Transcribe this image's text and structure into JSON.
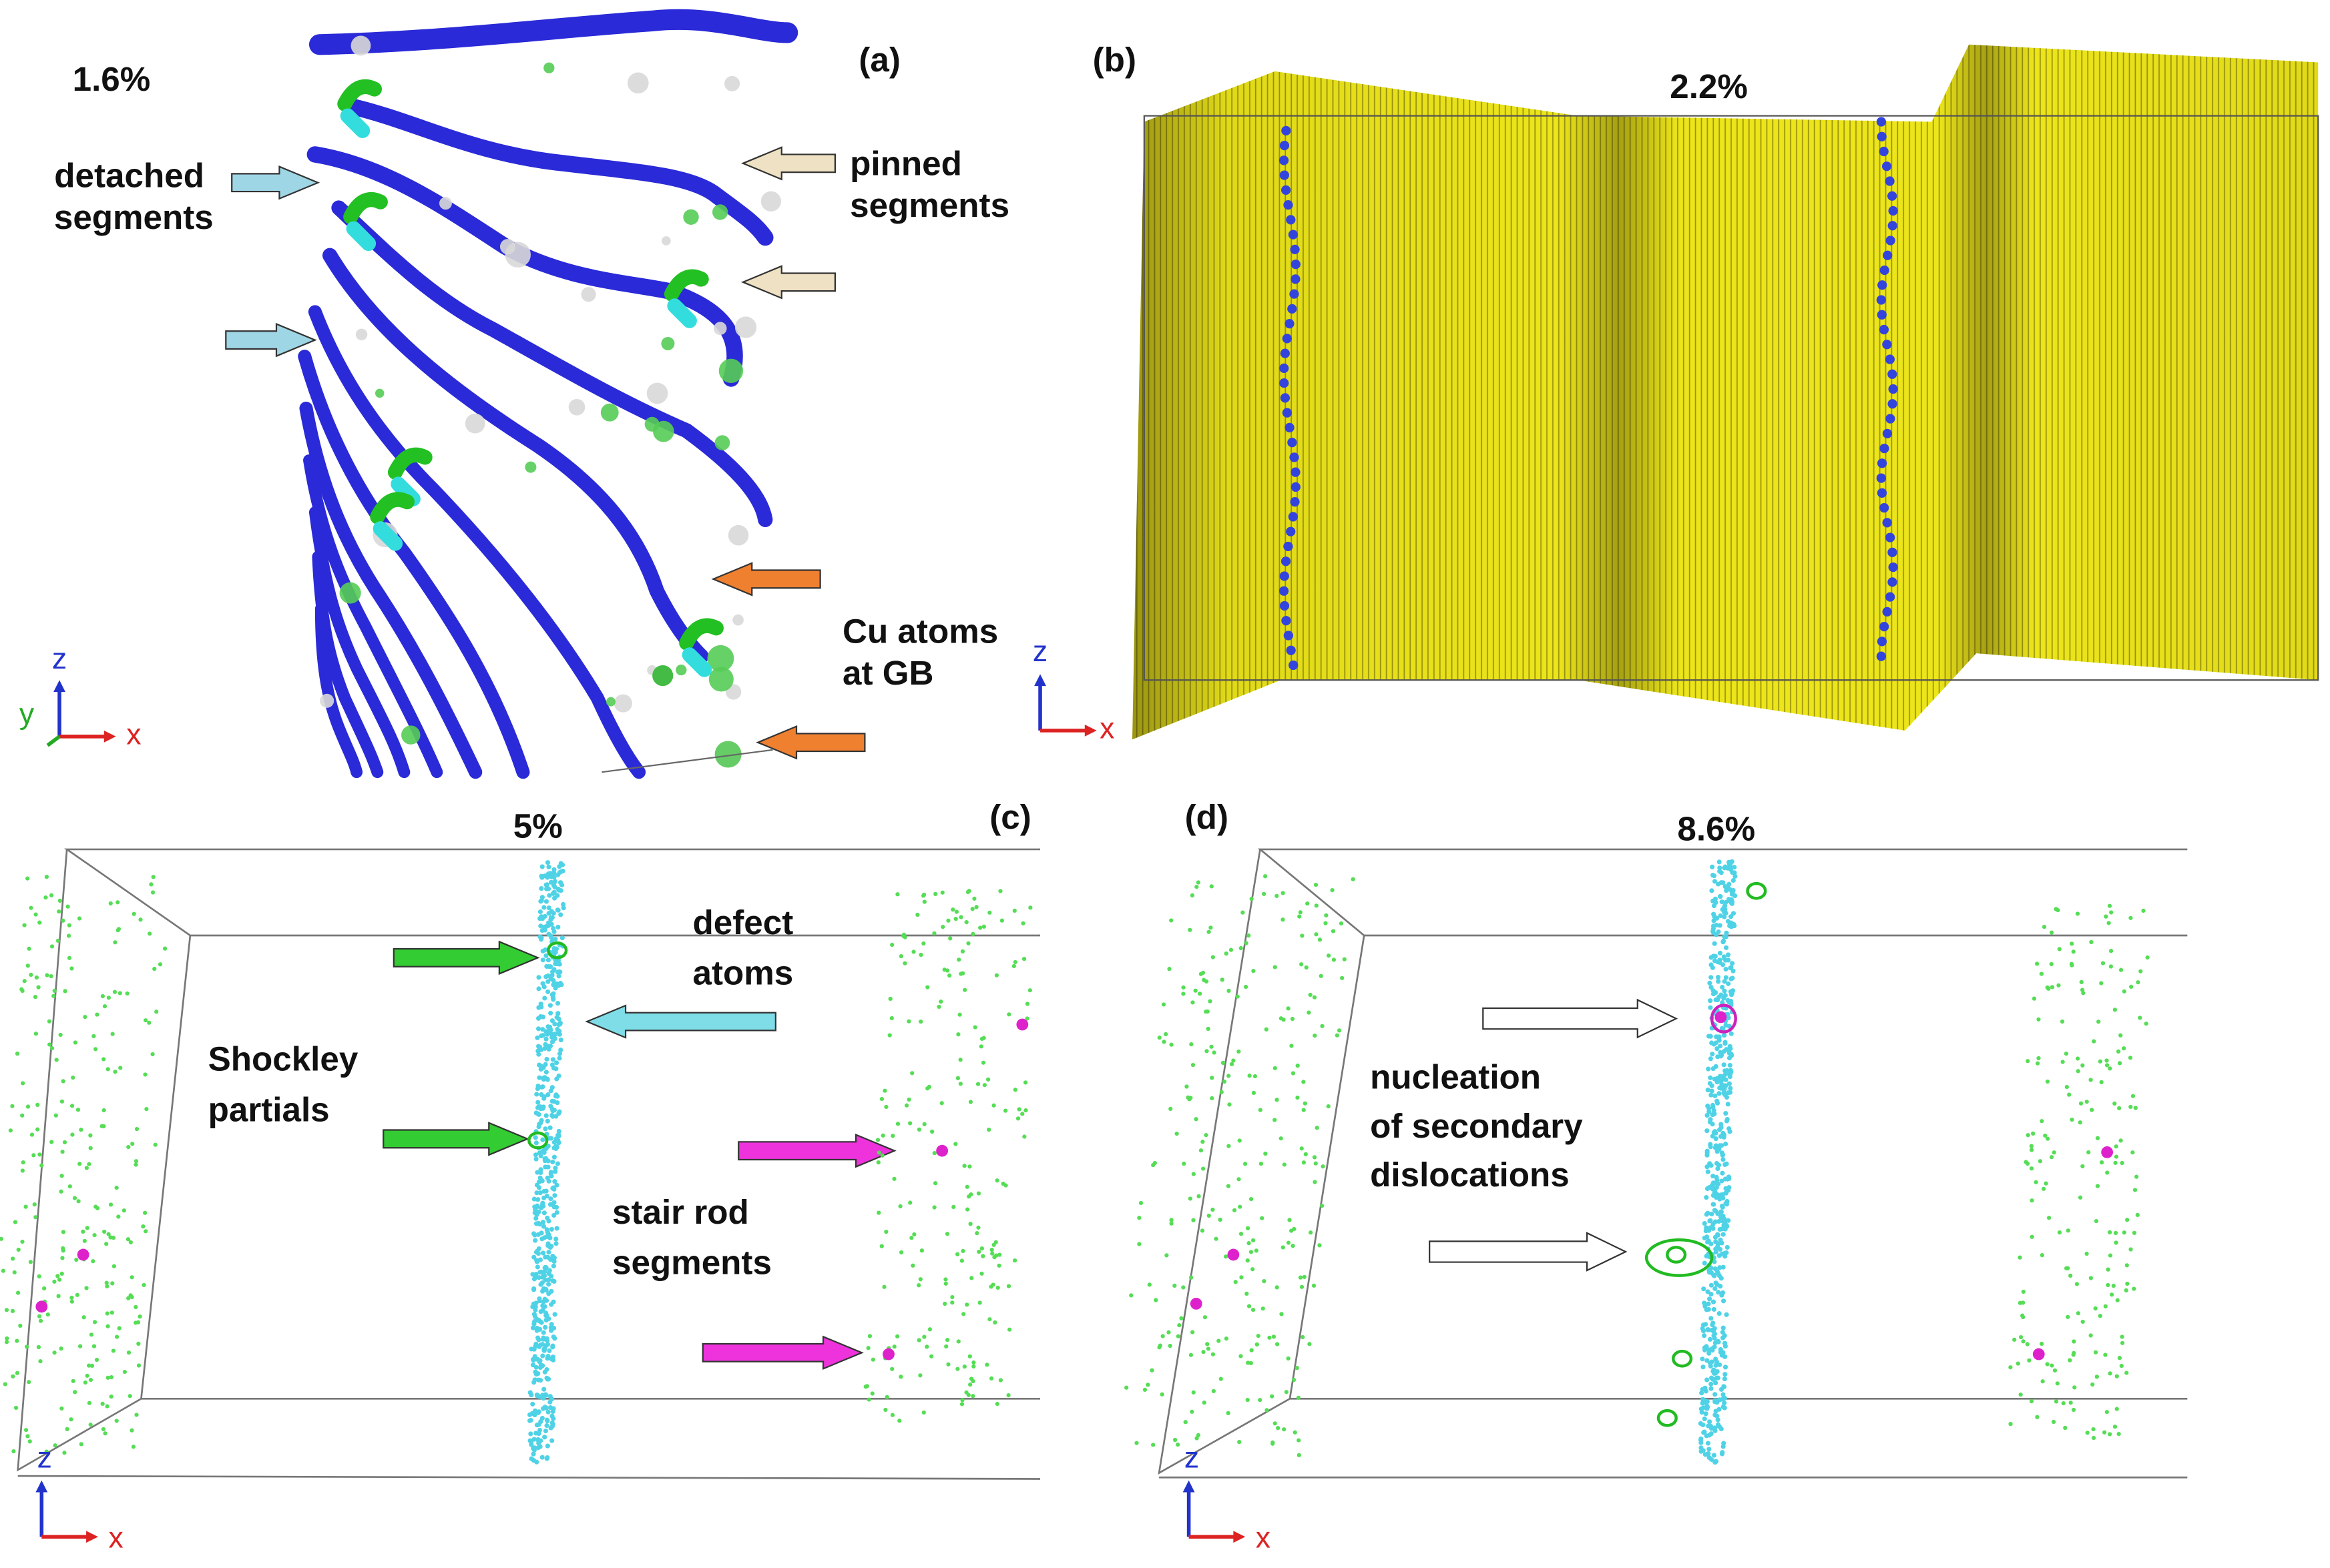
{
  "panels": [
    {
      "label": "(a)",
      "strain": "1.6%",
      "annotations": [
        [
          "detached",
          "segments"
        ],
        [
          "pinned",
          "segments"
        ],
        [
          "Cu atoms",
          "at GB"
        ]
      ],
      "axes": [
        "z",
        "y",
        "x"
      ]
    },
    {
      "label": "(b)",
      "strain": "2.2%",
      "axes": [
        "z",
        "x"
      ]
    },
    {
      "label": "(c)",
      "strain": "5%",
      "annotations": [
        [
          "defect",
          "atoms"
        ],
        [
          "Shockley",
          "partials"
        ],
        [
          "stair rod",
          "segments"
        ]
      ],
      "axes": [
        "z",
        "x"
      ]
    },
    {
      "label": "(d)",
      "strain": "8.6%",
      "annotations": [
        [
          "nucleation",
          "of secondary",
          "dislocations"
        ]
      ],
      "axes": [
        "z",
        "x"
      ]
    }
  ]
}
